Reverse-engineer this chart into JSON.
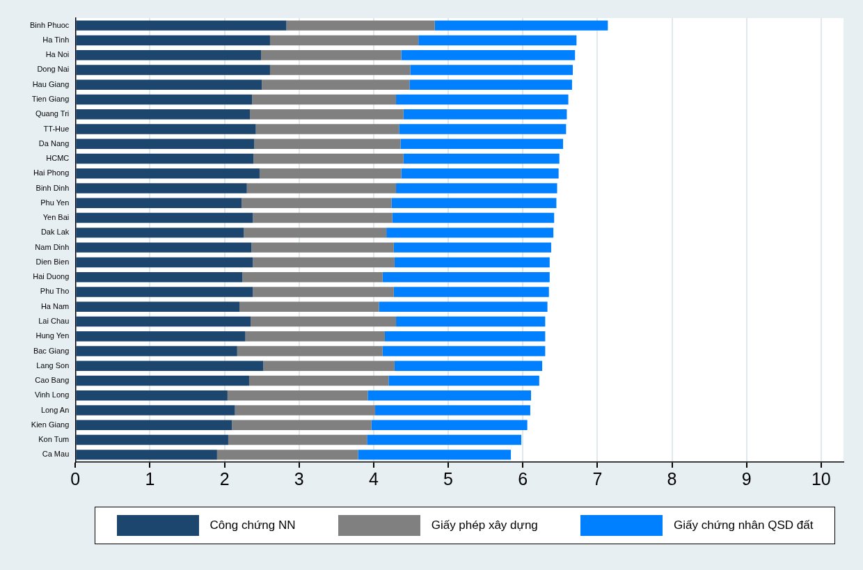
{
  "chart_data": {
    "type": "bar",
    "orientation": "horizontal",
    "stacked": true,
    "categories": [
      "Binh Phuoc",
      "Ha Tinh",
      "Ha Noi",
      "Dong Nai",
      "Hau Giang",
      "Tien Giang",
      "Quang Tri",
      "TT-Hue",
      "Da Nang",
      "HCMC",
      "Hai Phong",
      "Binh Dinh",
      "Phu Yen",
      "Yen Bai",
      "Dak Lak",
      "Nam Dinh",
      "Dien Bien",
      "Hai Duong",
      "Phu Tho",
      "Ha Nam",
      "Lai Chau",
      "Hung Yen",
      "Bac Giang",
      "Lang Son",
      "Cao Bang",
      "Vinh Long",
      "Long An",
      "Kien Giang",
      "Kon Tum",
      "Ca Mau"
    ],
    "series": [
      {
        "name": "Công chứng NN",
        "color": "#1c466e",
        "values": [
          2.83,
          2.61,
          2.49,
          2.61,
          2.5,
          2.37,
          2.34,
          2.42,
          2.4,
          2.39,
          2.47,
          2.3,
          2.23,
          2.38,
          2.26,
          2.36,
          2.38,
          2.24,
          2.38,
          2.2,
          2.35,
          2.28,
          2.17,
          2.52,
          2.33,
          2.04,
          2.14,
          2.1,
          2.05,
          1.9
        ]
      },
      {
        "name": "Giấy phép xây dựng",
        "color": "#808080",
        "values": [
          1.99,
          1.99,
          1.88,
          1.88,
          1.98,
          1.93,
          2.06,
          1.92,
          1.96,
          2.01,
          1.9,
          2.0,
          2.01,
          1.87,
          1.91,
          1.91,
          1.9,
          1.88,
          1.89,
          1.87,
          1.95,
          1.87,
          1.95,
          1.76,
          1.87,
          1.88,
          1.88,
          1.87,
          1.86,
          1.89
        ]
      },
      {
        "name": "Giấy chứng nhân QSD đất",
        "color": "#0080ff",
        "values": [
          2.32,
          2.12,
          2.33,
          2.18,
          2.18,
          2.31,
          2.19,
          2.24,
          2.18,
          2.09,
          2.11,
          2.16,
          2.21,
          2.17,
          2.24,
          2.11,
          2.08,
          2.24,
          2.08,
          2.26,
          2.0,
          2.15,
          2.18,
          1.98,
          2.02,
          2.19,
          2.08,
          2.09,
          2.07,
          2.05
        ]
      }
    ],
    "xlim": [
      0,
      10.3
    ],
    "xticks": [
      0,
      1,
      2,
      3,
      4,
      5,
      6,
      7,
      8,
      9,
      10
    ],
    "grid": "x",
    "legend": "bottom"
  }
}
